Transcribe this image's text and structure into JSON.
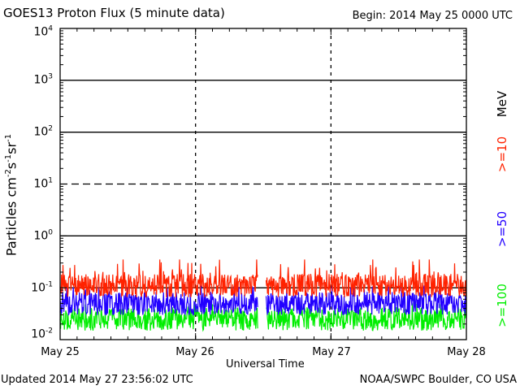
{
  "header": {
    "title": "GOES13 Proton Flux (5 minute data)",
    "begin": "Begin: 2014 May 25 0000 UTC"
  },
  "footer": {
    "updated": "Updated 2014 May 27 23:56:02 UTC",
    "credit": "NOAA/SWPC Boulder, CO USA"
  },
  "colors": {
    ">=10": "#ff2200",
    ">=50": "#2200ff",
    ">=100": "#00ee00",
    "axes": "#000000"
  },
  "chart_data": {
    "type": "line",
    "title": "GOES13 Proton Flux (5 minute data)",
    "xlabel": "Universal Time",
    "ylabel": "Particles cm⁻²s⁻¹sr⁻¹",
    "ylabel_parts": {
      "base": "Particles cm",
      "e1": "-2",
      "s": "s",
      "e2": "-1",
      "sr": "sr",
      "e3": "-1"
    },
    "yscale": "log",
    "ylim": [
      0.01,
      10000
    ],
    "xlim": [
      "2014-05-25T00:00",
      "2014-05-28T00:00"
    ],
    "x_ticks": [
      "May 25",
      "May 26",
      "May 27",
      "May 28"
    ],
    "y_ticks": [
      {
        "base": "10",
        "exp": "-2"
      },
      {
        "base": "10",
        "exp": "-1"
      },
      {
        "base": "10",
        "exp": "0"
      },
      {
        "base": "10",
        "exp": "1"
      },
      {
        "base": "10",
        "exp": "2"
      },
      {
        "base": "10",
        "exp": "3"
      },
      {
        "base": "10",
        "exp": "4"
      }
    ],
    "unit_label": "MeV",
    "threshold_lines": [
      {
        "value": 0.1,
        "style": "solid"
      },
      {
        "value": 1,
        "style": "solid"
      },
      {
        "value": 10,
        "style": "dashed"
      },
      {
        "value": 100,
        "style": "solid"
      },
      {
        "value": 1000,
        "style": "solid"
      }
    ],
    "data_gap": [
      "2014-05-26T11:00",
      "2014-05-26T12:30"
    ],
    "series": [
      {
        "name": ">=10",
        "color": "#ff2200",
        "typical": 0.11,
        "range": [
          0.06,
          0.35
        ]
      },
      {
        "name": ">=50",
        "color": "#2200ff",
        "typical": 0.05,
        "range": [
          0.025,
          0.11
        ]
      },
      {
        "name": ">=100",
        "color": "#00ee00",
        "typical": 0.025,
        "range": [
          0.015,
          0.05
        ]
      }
    ],
    "grid": false,
    "legend": "right"
  }
}
